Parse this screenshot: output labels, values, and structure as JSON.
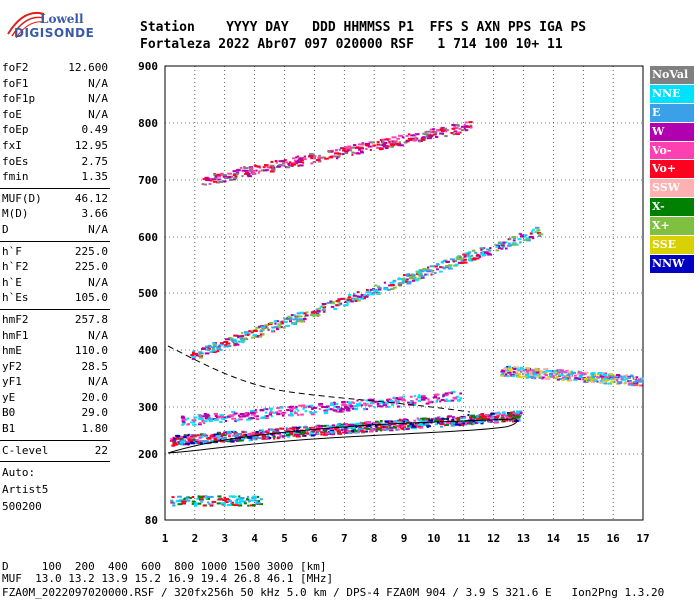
{
  "logo": {
    "line1": "Lowell",
    "line2": "DIGISONDE"
  },
  "header": {
    "row1": "Station    YYYY DAY   DDD HHMMSS P1  FFS S AXN PPS IGA PS",
    "row2": "Fortaleza 2022 Abr07 097 020000 RSF   1 714 100 10+ 11"
  },
  "params": {
    "group1": [
      {
        "name": "foF2",
        "value": "12.600"
      },
      {
        "name": "foF1",
        "value": "N/A"
      },
      {
        "name": "foF1p",
        "value": "N/A"
      },
      {
        "name": "foE",
        "value": "N/A"
      },
      {
        "name": "foEp",
        "value": "0.49"
      },
      {
        "name": "fxI",
        "value": "12.95"
      },
      {
        "name": "foEs",
        "value": "2.75"
      },
      {
        "name": "fmin",
        "value": "1.35"
      }
    ],
    "group2": [
      {
        "name": "MUF(D)",
        "value": "46.12"
      },
      {
        "name": "M(D)",
        "value": "3.66"
      },
      {
        "name": "D",
        "value": "N/A"
      }
    ],
    "group3": [
      {
        "name": "h`F",
        "value": "225.0"
      },
      {
        "name": "h`F2",
        "value": "225.0"
      },
      {
        "name": "h`E",
        "value": "N/A"
      },
      {
        "name": "h`Es",
        "value": "105.0"
      }
    ],
    "group4": [
      {
        "name": "hmF2",
        "value": "257.8"
      },
      {
        "name": "hmF1",
        "value": "N/A"
      },
      {
        "name": "hmE",
        "value": "110.0"
      },
      {
        "name": "yF2",
        "value": "28.5"
      },
      {
        "name": "yF1",
        "value": "N/A"
      },
      {
        "name": "yE",
        "value": "20.0"
      },
      {
        "name": "B0",
        "value": "29.0"
      },
      {
        "name": "B1",
        "value": "1.80"
      }
    ],
    "group5": [
      {
        "name": "C-level",
        "value": "22"
      }
    ],
    "auto": [
      "Auto:",
      "Artist5",
      "500200"
    ]
  },
  "axes": {
    "y_ticks": [
      "900",
      "800",
      "700",
      "600",
      "500",
      "400",
      "300",
      "200",
      "80"
    ],
    "x_ticks": [
      "1",
      "2",
      "3",
      "4",
      "5",
      "6",
      "7",
      "8",
      "9",
      "10",
      "11",
      "12",
      "13",
      "14",
      "15",
      "16",
      "17"
    ]
  },
  "legend": [
    {
      "label": "NoVal",
      "color": "#808080"
    },
    {
      "label": "NNE",
      "color": "#00e0ff"
    },
    {
      "label": "E",
      "color": "#3aa0e8"
    },
    {
      "label": "W",
      "color": "#b000b0"
    },
    {
      "label": "Vo-",
      "color": "#ff40b0"
    },
    {
      "label": "Vo+",
      "color": "#ff0020"
    },
    {
      "label": "SSW",
      "color": "#ffb0b0"
    },
    {
      "label": "X-",
      "color": "#008000"
    },
    {
      "label": "X+",
      "color": "#80c040"
    },
    {
      "label": "SSE",
      "color": "#d8d000"
    },
    {
      "label": "NNW",
      "color": "#0000c0"
    }
  ],
  "footer": {
    "row1": "D     100  200  400  600  800 1000 1500 3000 [km]",
    "row2": "MUF  13.0 13.2 13.9 15.2 16.9 19.4 26.8 46.1 [MHz]",
    "row3": "FZA0M_2022097020000.RSF / 320fx256h 50 kHz 5.0 km / DPS-4 FZA0M 904 / 3.9 S 321.6 E   Ion2Png 1.3.20"
  }
}
